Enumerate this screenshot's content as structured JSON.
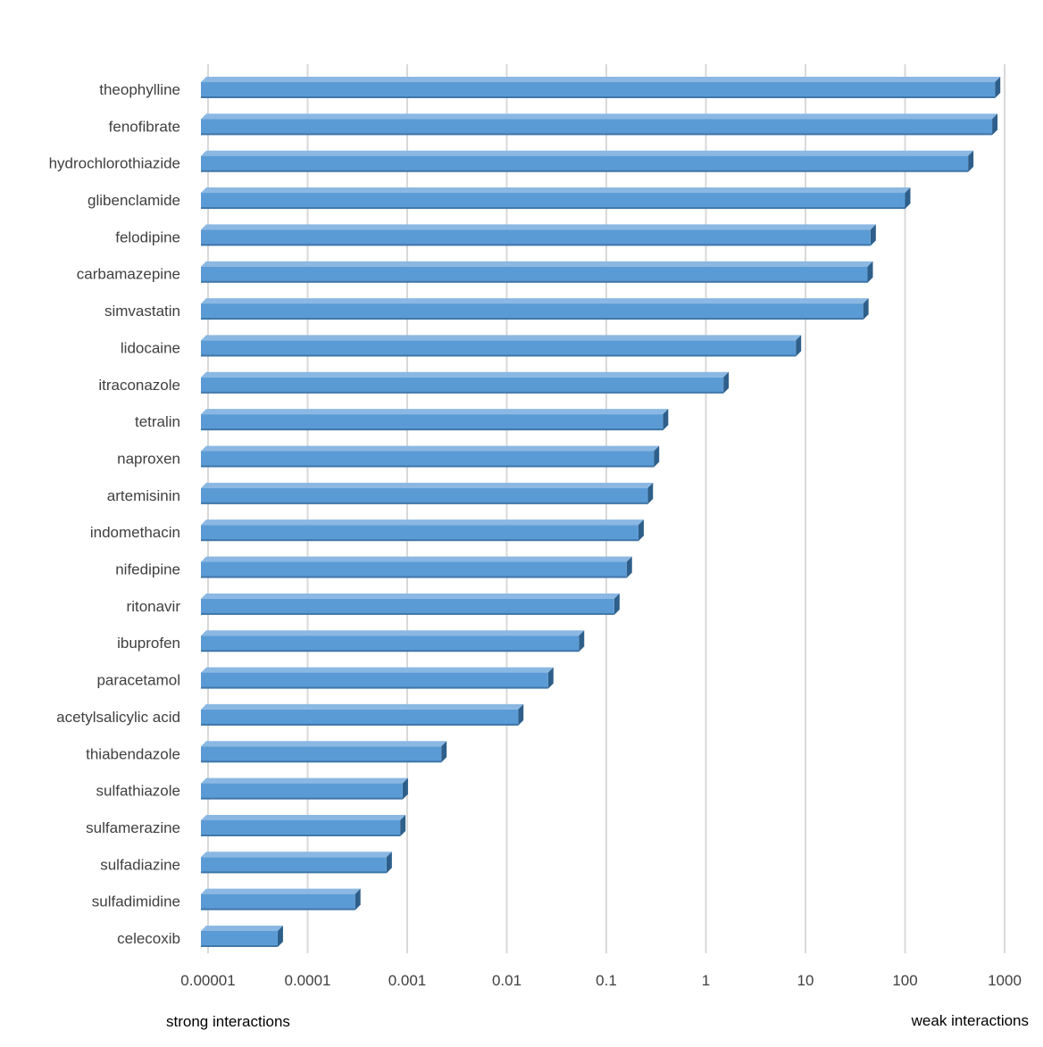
{
  "chart_data": {
    "type": "bar",
    "orientation": "horizontal",
    "x_scale": "log",
    "xlim": [
      1e-05,
      1000
    ],
    "x_ticks": [
      "0.00001",
      "0.0001",
      "0.001",
      "0.01",
      "0.1",
      "1",
      "10",
      "100",
      "1000"
    ],
    "grid": true,
    "style": "3d",
    "colors": {
      "bar": "#5b9bd5",
      "bar_side": "#2e5f8a",
      "bar_top": "#8ab8e3",
      "grid": "#d9d9d9"
    },
    "categories": [
      "theophylline",
      "fenofibrate",
      "hydrochlorothiazide",
      "glibenclamide",
      "felodipine",
      "carbamazepine",
      "simvastatin",
      "lidocaine",
      "itraconazole",
      "tetralin",
      "naproxen",
      "artemisinin",
      "indomethacin",
      "nifedipine",
      "ritonavir",
      "ibuprofen",
      "paracetamol",
      "acetylsalicylic acid",
      "thiabendazole",
      "sulfathiazole",
      "sulfamerazine",
      "sulfadiazine",
      "sulfadimidine",
      "celecoxib"
    ],
    "values": [
      800,
      750,
      430,
      100,
      45,
      42,
      38,
      8,
      1.5,
      0.37,
      0.3,
      0.26,
      0.21,
      0.16,
      0.12,
      0.053,
      0.026,
      0.013,
      0.0022,
      0.0009,
      0.00085,
      0.00062,
      0.0003,
      5e-05
    ],
    "annotations": {
      "left": "strong interactions",
      "right": "weak interactions"
    }
  }
}
